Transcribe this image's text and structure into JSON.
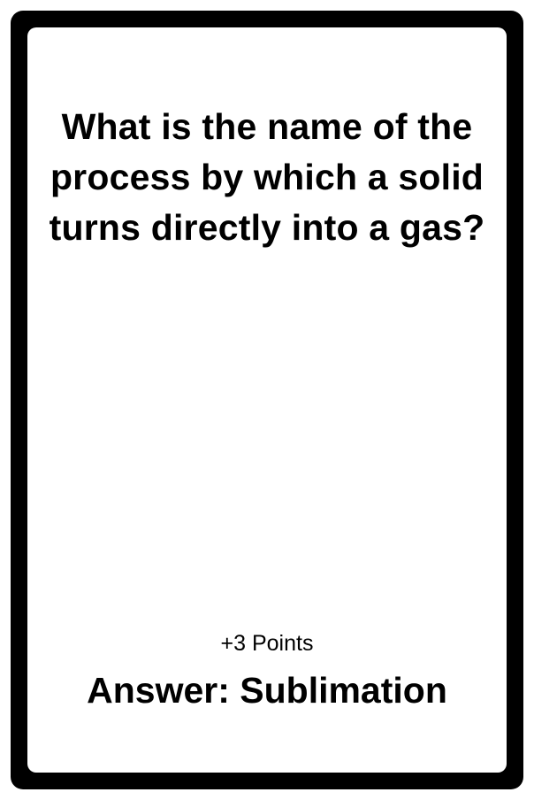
{
  "card": {
    "question": "What is the name of the process by which a solid turns directly into a gas?",
    "points": "+3 Points",
    "answer": "Answer: Sublimation"
  },
  "colors": {
    "frame": "#000000",
    "face": "#ffffff",
    "text": "#000000"
  }
}
